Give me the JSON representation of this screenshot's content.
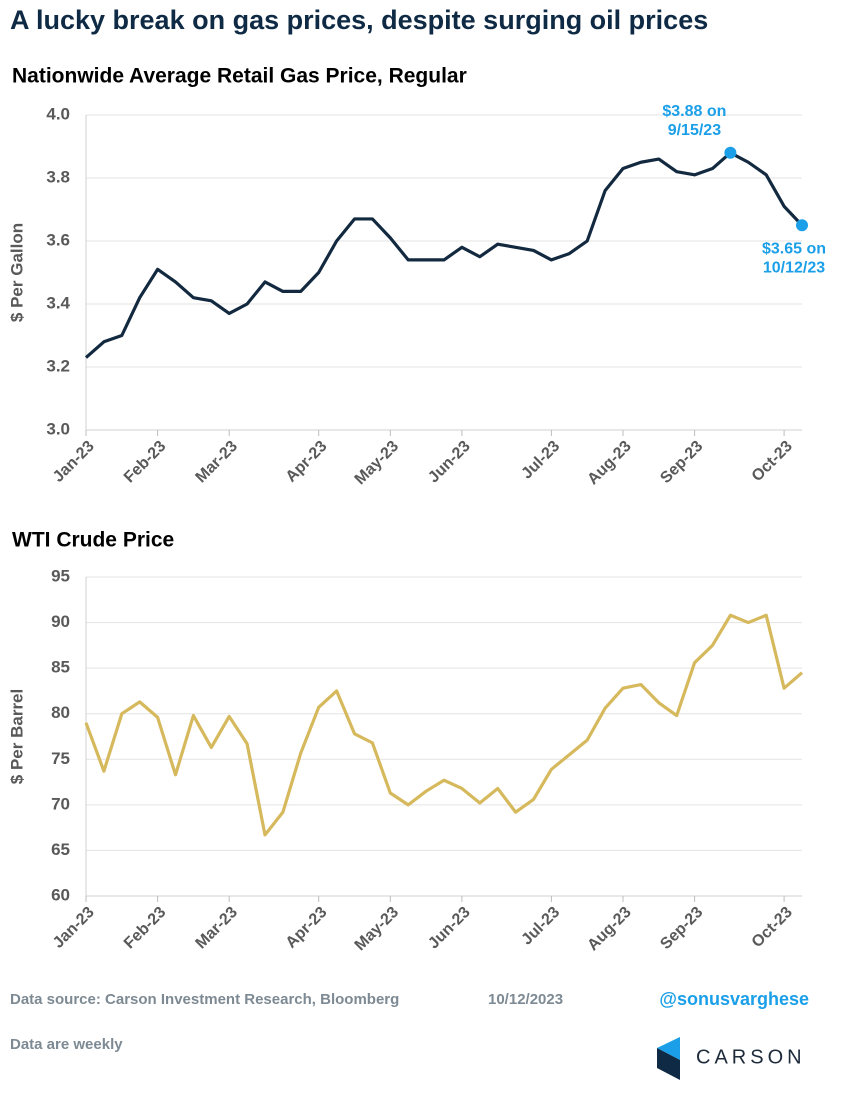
{
  "title": "A lucky break on gas prices, despite surging oil prices",
  "chart_data": [
    {
      "type": "line",
      "title": "Nationwide Average Retail Gas Price, Regular",
      "ylabel": "$ Per Gallon",
      "categories": [
        "Jan-23",
        null,
        null,
        null,
        "Feb-23",
        null,
        null,
        null,
        "Mar-23",
        null,
        null,
        null,
        null,
        "Apr-23",
        null,
        null,
        null,
        "May-23",
        null,
        null,
        null,
        "Jun-23",
        null,
        null,
        null,
        null,
        "Jul-23",
        null,
        null,
        null,
        "Aug-23",
        null,
        null,
        null,
        "Sep-23",
        null,
        null,
        null,
        null,
        "Oct-23",
        null
      ],
      "series": [
        {
          "color": "#12293f",
          "values": [
            3.23,
            3.28,
            3.3,
            3.42,
            3.51,
            3.47,
            3.42,
            3.41,
            3.37,
            3.4,
            3.47,
            3.44,
            3.44,
            3.5,
            3.6,
            3.67,
            3.67,
            3.61,
            3.54,
            3.54,
            3.54,
            3.58,
            3.55,
            3.59,
            3.58,
            3.57,
            3.54,
            3.56,
            3.6,
            3.76,
            3.83,
            3.85,
            3.86,
            3.82,
            3.81,
            3.83,
            3.88,
            3.85,
            3.81,
            3.71,
            3.65
          ]
        }
      ],
      "ylim": [
        3.0,
        4.0
      ],
      "yticks": [
        {
          "value": 3,
          "label": "3.0"
        },
        3.2,
        3.4,
        3.6,
        3.8,
        {
          "value": 4,
          "label": "4.0"
        }
      ],
      "grid": true,
      "annotation_color": "#1a9fe8",
      "annotations": [
        {
          "lines": [
            "$3.88 on",
            "9/15/23"
          ]
        },
        {
          "lines": [
            "$3.65 on",
            "10/12/23"
          ]
        }
      ]
    },
    {
      "type": "line",
      "title": "WTI Crude Price",
      "ylabel": "$ Per Barrel",
      "categories": [
        "Jan-23",
        null,
        null,
        null,
        "Feb-23",
        null,
        null,
        null,
        "Mar-23",
        null,
        null,
        null,
        null,
        "Apr-23",
        null,
        null,
        null,
        "May-23",
        null,
        null,
        null,
        "Jun-23",
        null,
        null,
        null,
        null,
        "Jul-23",
        null,
        null,
        null,
        "Aug-23",
        null,
        null,
        null,
        "Sep-23",
        null,
        null,
        null,
        null,
        "Oct-23",
        null
      ],
      "series": [
        {
          "color": "#d6b95c",
          "values": [
            79,
            73.7,
            80,
            81.3,
            79.6,
            73.3,
            79.8,
            76.3,
            79.7,
            76.7,
            66.7,
            69.2,
            75.7,
            80.7,
            82.5,
            77.8,
            76.8,
            71.3,
            70,
            71.5,
            72.7,
            71.8,
            70.2,
            71.8,
            69.2,
            70.6,
            73.9,
            75.5,
            77.1,
            80.6,
            82.8,
            83.2,
            81.2,
            79.8,
            85.6,
            87.5,
            90.8,
            90.0,
            90.8,
            82.8,
            84.5
          ]
        }
      ],
      "ylim": [
        60,
        95
      ],
      "yticks": [
        60,
        65,
        70,
        75,
        80,
        85,
        90,
        95
      ],
      "grid": true
    }
  ],
  "footer": {
    "source": "Data source: Carson Investment Research, Bloomberg",
    "date": "10/12/2023",
    "handle": "@sonusvarghese",
    "note": "Data are weekly"
  },
  "logo": "CARSON"
}
